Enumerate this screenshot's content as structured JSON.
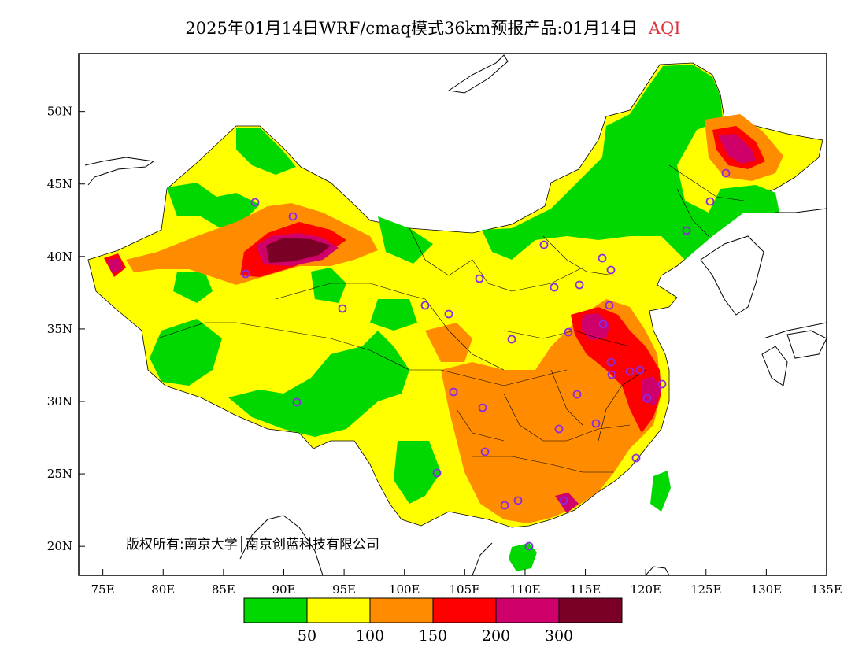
{
  "title": "2025年01月14日WRF/cmaq模式36km预报产品:01月14日",
  "variable": "AQI",
  "copyright": "版权所有:南京大学│南京创蓝科技有限公司",
  "map": {
    "lon_range": [
      73,
      135
    ],
    "lat_range": [
      18,
      54
    ],
    "lon_ticks": [
      "75E",
      "80E",
      "85E",
      "90E",
      "95E",
      "100E",
      "105E",
      "110E",
      "115E",
      "120E",
      "125E",
      "130E",
      "135E"
    ],
    "lat_ticks": [
      "20N",
      "25N",
      "30N",
      "35N",
      "40N",
      "45N",
      "50N"
    ]
  },
  "legend": {
    "colors": [
      "#00d800",
      "#ffff00",
      "#ff8c00",
      "#ff0000",
      "#d0006a",
      "#7a0025"
    ],
    "labels": [
      "50",
      "100",
      "150",
      "200",
      "300"
    ]
  },
  "colors": {
    "title_variable": "#e0303a",
    "station_marker": "#8a2be2",
    "background": "#ffffff"
  }
}
